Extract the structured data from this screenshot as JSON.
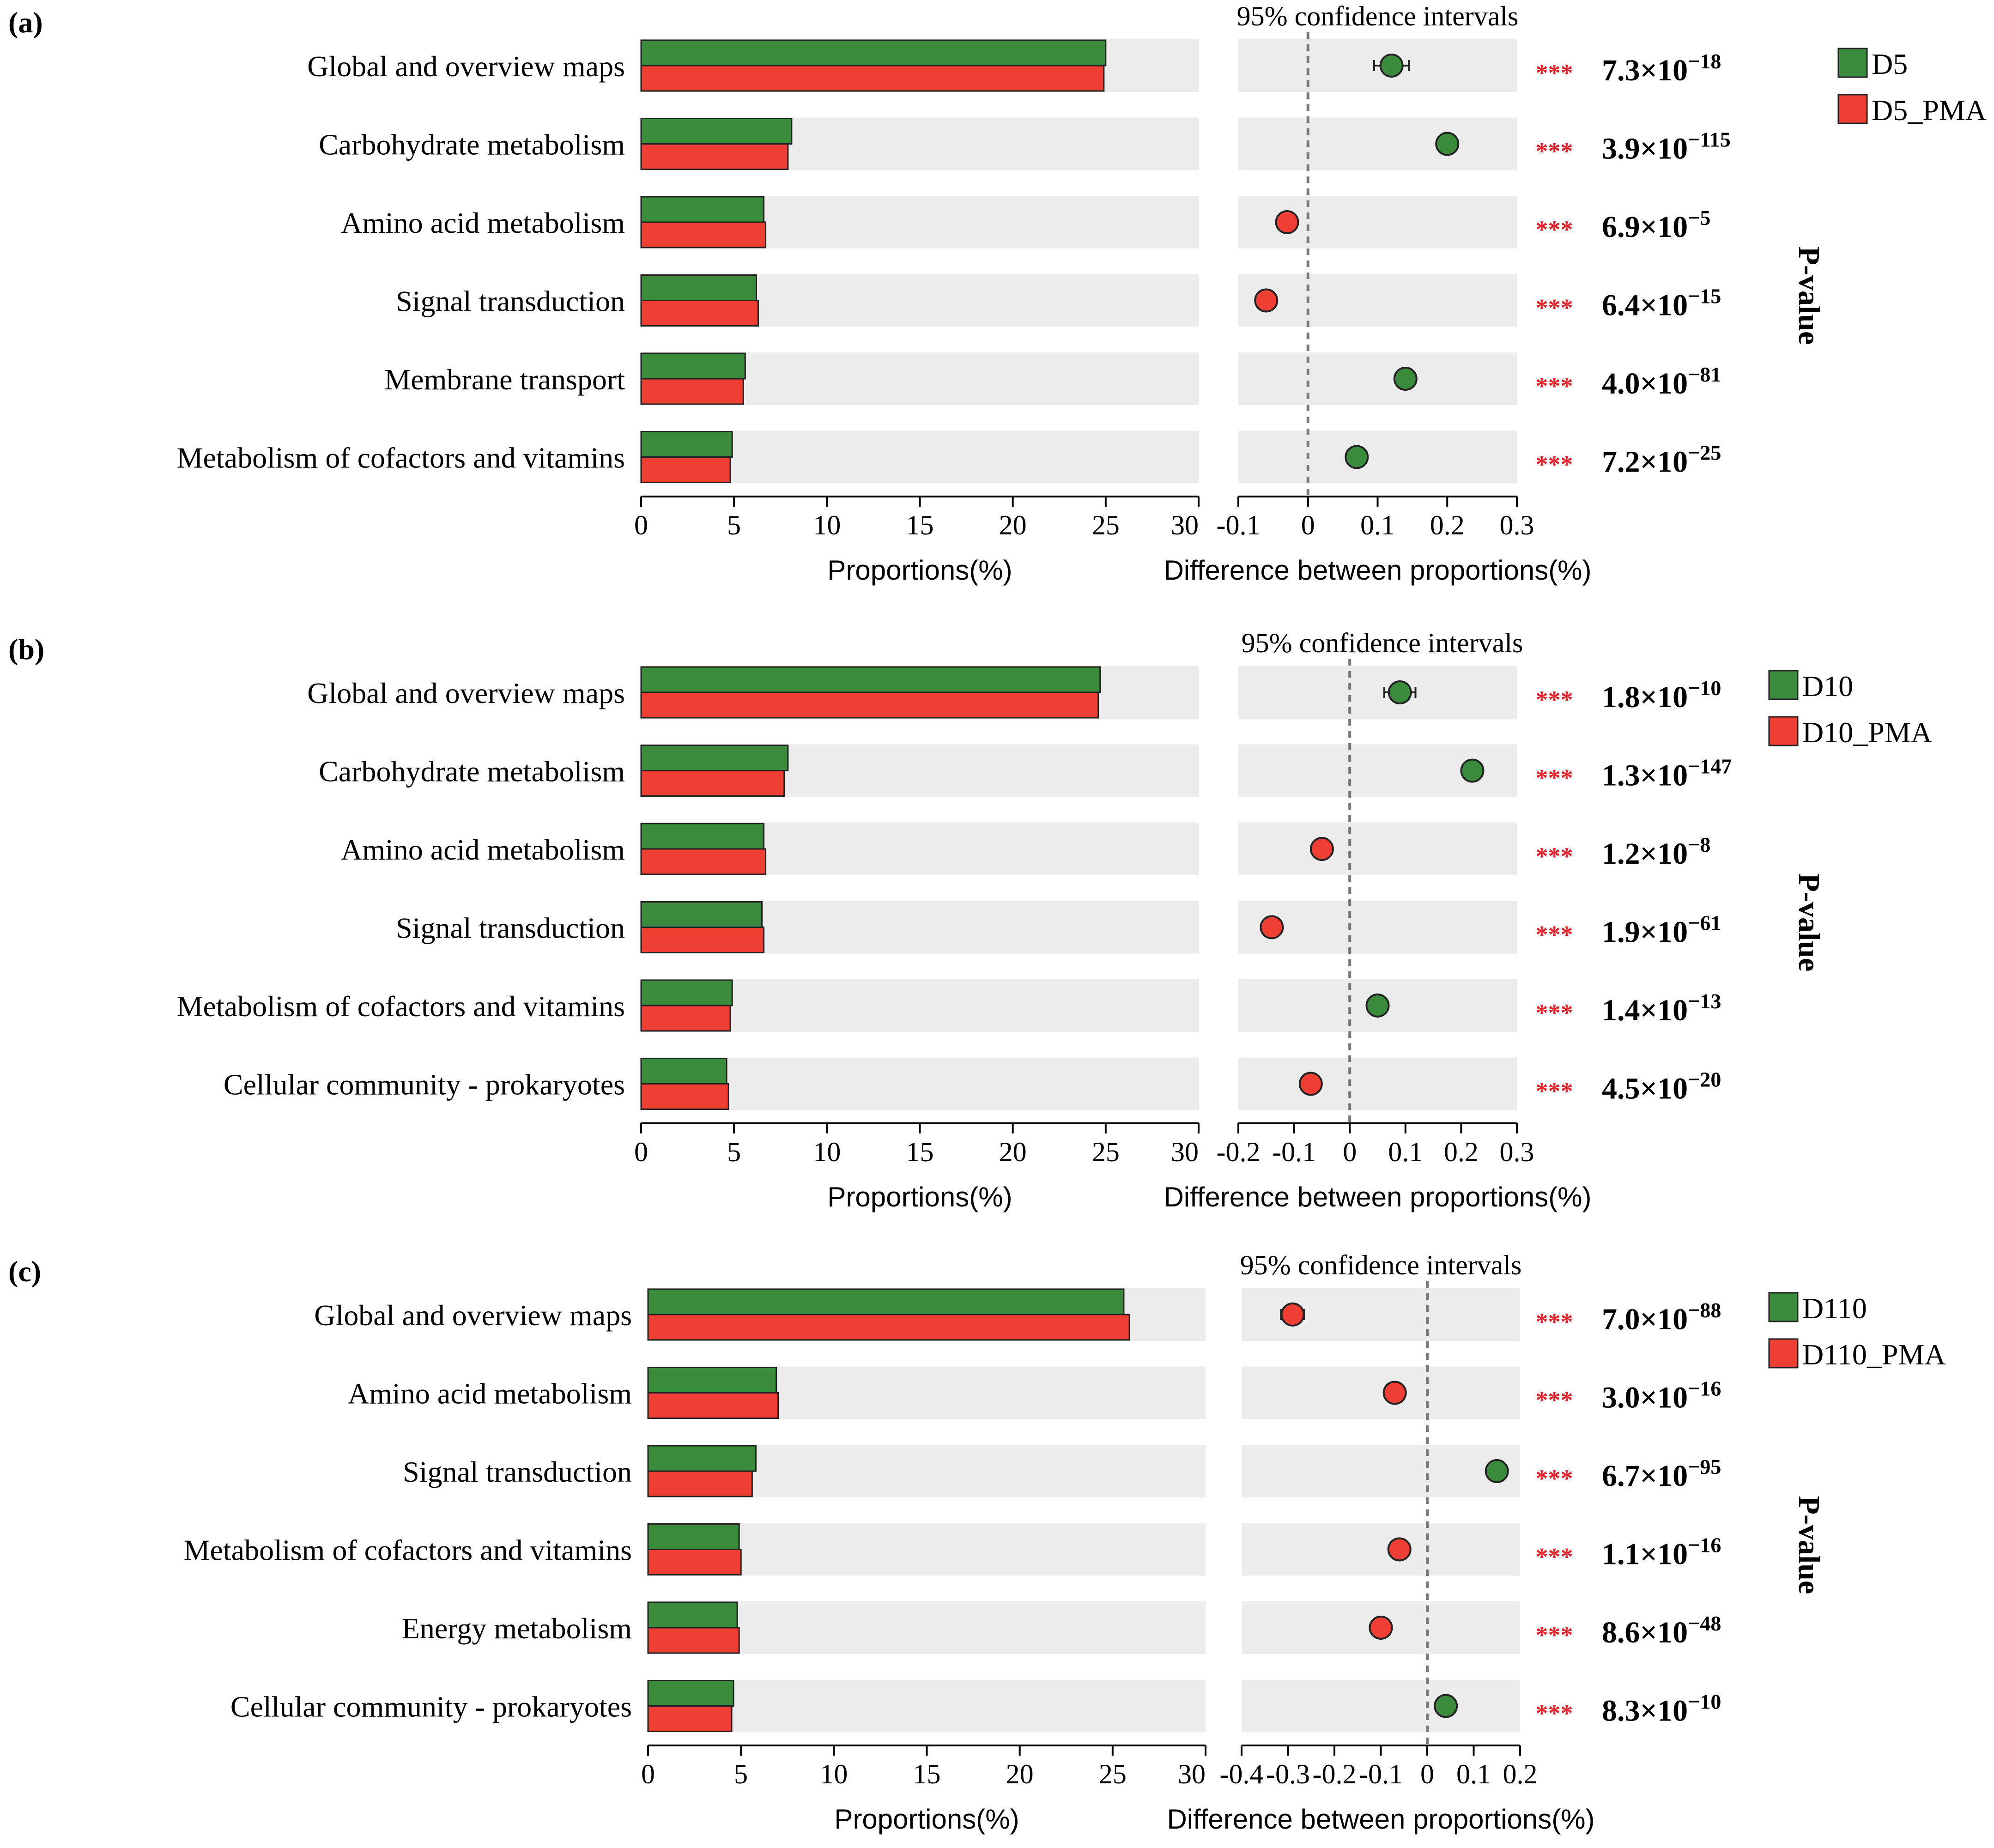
{
  "colors": {
    "group_a": "#3a8c3c",
    "group_b": "#ef3e33",
    "stripe": "#ececec",
    "stars": "#e8212b",
    "zero_line": "#777777"
  },
  "chart_data": [
    {
      "panel": "(a)",
      "type": "bar",
      "categories": [
        "Global and overview maps",
        "Carbohydrate metabolism",
        "Amino acid metabolism",
        "Signal transduction",
        "Membrane transport",
        "Metabolism of cofactors and vitamins"
      ],
      "series": [
        {
          "name": "D5",
          "values": [
            25.0,
            8.1,
            6.6,
            6.2,
            5.6,
            4.9
          ]
        },
        {
          "name": "D5_PMA",
          "values": [
            24.9,
            7.9,
            6.7,
            6.3,
            5.5,
            4.8
          ]
        }
      ],
      "xlabel": "Proportions(%)",
      "xlim": [
        0,
        30
      ],
      "xticks": [
        "0",
        "5",
        "10",
        "15",
        "20",
        "25",
        "30"
      ],
      "ci": {
        "title": "95% confidence intervals",
        "xlabel": "Difference between proportions(%)",
        "xlim": [
          -0.1,
          0.3
        ],
        "xticks": [
          "-0.1",
          "0",
          "0.1",
          "0.2",
          "0.3"
        ],
        "diff": [
          0.12,
          0.2,
          -0.03,
          -0.06,
          0.14,
          0.07
        ],
        "err": [
          0.025,
          0.012,
          0.006,
          0.008,
          0.008,
          0.008
        ],
        "color": [
          "a",
          "a",
          "b",
          "b",
          "a",
          "a"
        ]
      },
      "stars": [
        "***",
        "***",
        "***",
        "***",
        "***",
        "***"
      ],
      "pvalues": [
        {
          "m": "7.3×10",
          "e": "−18"
        },
        {
          "m": "3.9×10",
          "e": "−115"
        },
        {
          "m": "6.9×10",
          "e": "−5"
        },
        {
          "m": "6.4×10",
          "e": "−15"
        },
        {
          "m": "4.0×10",
          "e": "−81"
        },
        {
          "m": "7.2×10",
          "e": "−25"
        }
      ],
      "pvalue_title": "P-value"
    },
    {
      "panel": "(b)",
      "type": "bar",
      "categories": [
        "Global and overview maps",
        "Carbohydrate metabolism",
        "Amino acid metabolism",
        "Signal transduction",
        "Metabolism of cofactors and vitamins",
        "Cellular community - prokaryotes"
      ],
      "series": [
        {
          "name": "D10",
          "values": [
            24.7,
            7.9,
            6.6,
            6.5,
            4.9,
            4.6
          ]
        },
        {
          "name": "D10_PMA",
          "values": [
            24.6,
            7.7,
            6.7,
            6.6,
            4.8,
            4.7
          ]
        }
      ],
      "xlabel": "Proportions(%)",
      "xlim": [
        0,
        30
      ],
      "xticks": [
        "0",
        "5",
        "10",
        "15",
        "20",
        "25",
        "30"
      ],
      "ci": {
        "title": "95% confidence intervals",
        "xlabel": "Difference between proportions(%)",
        "xlim": [
          -0.2,
          0.3
        ],
        "xticks": [
          "-0.2",
          "-0.1",
          "0",
          "0.1",
          "0.2",
          "0.3"
        ],
        "diff": [
          0.09,
          0.22,
          -0.05,
          -0.14,
          0.05,
          -0.07
        ],
        "err": [
          0.028,
          0.008,
          0.008,
          0.008,
          0.008,
          0.008
        ],
        "color": [
          "a",
          "a",
          "b",
          "b",
          "a",
          "b"
        ]
      },
      "stars": [
        "***",
        "***",
        "***",
        "***",
        "***",
        "***"
      ],
      "pvalues": [
        {
          "m": "1.8×10",
          "e": "−10"
        },
        {
          "m": "1.3×10",
          "e": "−147"
        },
        {
          "m": "1.2×10",
          "e": "−8"
        },
        {
          "m": "1.9×10",
          "e": "−61"
        },
        {
          "m": "1.4×10",
          "e": "−13"
        },
        {
          "m": "4.5×10",
          "e": "−20"
        }
      ],
      "pvalue_title": "P-value"
    },
    {
      "panel": "(c)",
      "type": "bar",
      "categories": [
        "Global and overview maps",
        "Amino acid metabolism",
        "Signal transduction",
        "Metabolism of cofactors and vitamins",
        "Energy metabolism",
        "Cellular community - prokaryotes"
      ],
      "series": [
        {
          "name": "D110",
          "values": [
            25.6,
            6.9,
            5.8,
            4.9,
            4.8,
            4.6
          ]
        },
        {
          "name": "D110_PMA",
          "values": [
            25.9,
            7.0,
            5.6,
            5.0,
            4.9,
            4.5
          ]
        }
      ],
      "xlabel": "Proportions(%)",
      "xlim": [
        0,
        30
      ],
      "xticks": [
        "0",
        "5",
        "10",
        "15",
        "20",
        "25",
        "30"
      ],
      "ci": {
        "title": "95% confidence intervals",
        "xlabel": "Difference between proportions(%)",
        "xlim": [
          -0.4,
          0.2
        ],
        "xticks": [
          "-0.4",
          "-0.3",
          "-0.2",
          "-0.1",
          "0",
          "0.1",
          "0.2"
        ],
        "diff": [
          -0.29,
          -0.07,
          0.15,
          -0.06,
          -0.1,
          0.04
        ],
        "err": [
          0.025,
          0.008,
          0.008,
          0.008,
          0.008,
          0.008
        ],
        "color": [
          "b",
          "b",
          "a",
          "b",
          "b",
          "a"
        ]
      },
      "stars": [
        "***",
        "***",
        "***",
        "***",
        "***",
        "***"
      ],
      "pvalues": [
        {
          "m": "7.0×10",
          "e": "−88"
        },
        {
          "m": "3.0×10",
          "e": "−16"
        },
        {
          "m": "6.7×10",
          "e": "−95"
        },
        {
          "m": "1.1×10",
          "e": "−16"
        },
        {
          "m": "8.6×10",
          "e": "−48"
        },
        {
          "m": "8.3×10",
          "e": "−10"
        }
      ],
      "pvalue_title": "P-value"
    }
  ]
}
